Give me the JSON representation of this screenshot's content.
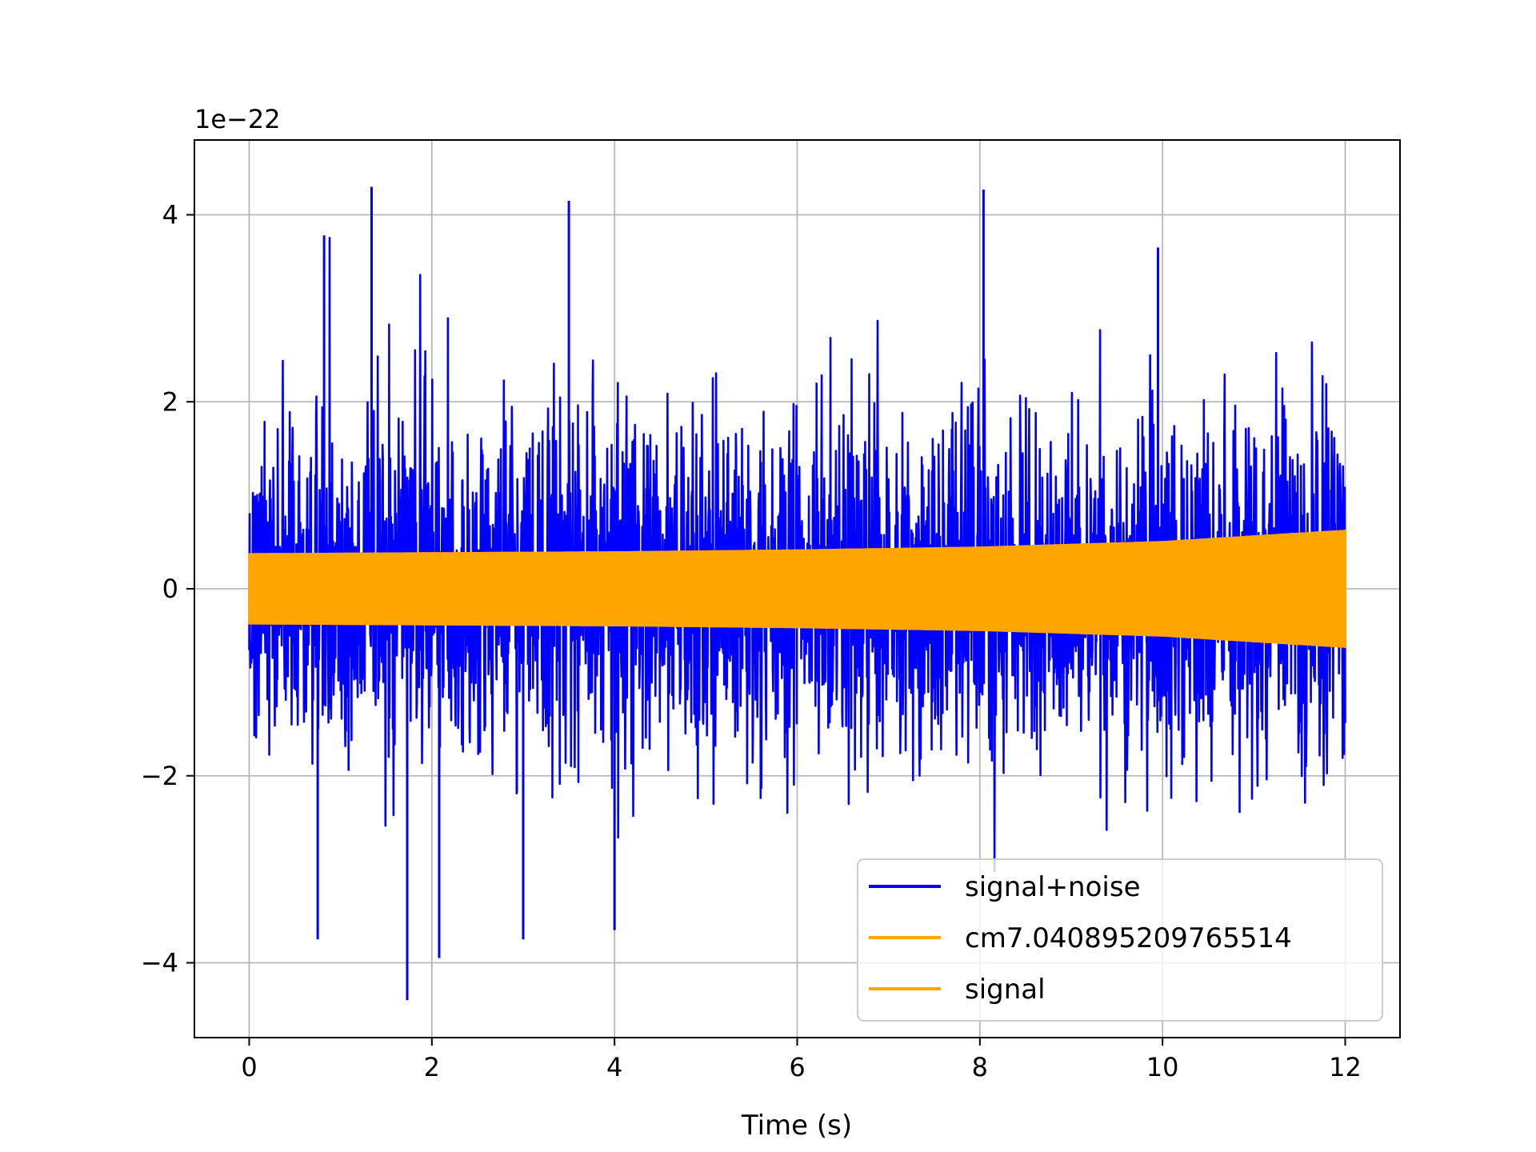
{
  "chart_data": {
    "type": "line",
    "title": "",
    "xlabel": "Time (s)",
    "ylabel": "",
    "y_scale_label": "1e−22",
    "xlim": [
      -0.6,
      12.6
    ],
    "ylim": [
      -4.8,
      4.8
    ],
    "x_ticks": [
      0,
      2,
      4,
      6,
      8,
      10,
      12
    ],
    "x_tick_labels": [
      "0",
      "2",
      "4",
      "6",
      "8",
      "10",
      "12"
    ],
    "y_ticks": [
      -4,
      -2,
      0,
      2,
      4
    ],
    "y_tick_labels": [
      "−4",
      "−2",
      "0",
      "2",
      "4"
    ],
    "grid": true,
    "legend_position": "lower-right",
    "series": [
      {
        "name": "signal+noise",
        "color": "#0000ff",
        "x_range": [
          0,
          12
        ],
        "typical_peak": 2.2,
        "max": 4.3,
        "min": -4.4
      },
      {
        "name": "cm7.040895209765514",
        "color": "#ffa500",
        "x_range": [
          0,
          12
        ],
        "envelope": [
          [
            0,
            0.37
          ],
          [
            2,
            0.38
          ],
          [
            4,
            0.39
          ],
          [
            6,
            0.41
          ],
          [
            8,
            0.44
          ],
          [
            10,
            0.5
          ],
          [
            12,
            0.62
          ]
        ]
      },
      {
        "name": "signal",
        "color": "#ffa500",
        "x_range": [
          0,
          12
        ],
        "envelope": [
          [
            0,
            0.37
          ],
          [
            2,
            0.38
          ],
          [
            4,
            0.39
          ],
          [
            6,
            0.41
          ],
          [
            8,
            0.44
          ],
          [
            10,
            0.5
          ],
          [
            12,
            0.62
          ]
        ]
      }
    ]
  }
}
